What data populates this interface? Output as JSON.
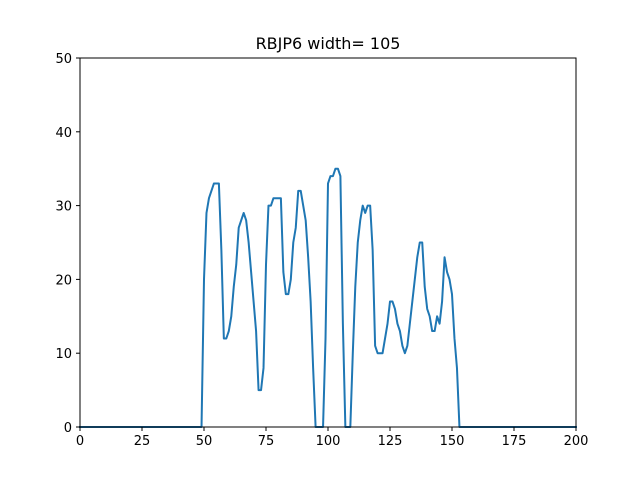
{
  "chart_data": {
    "type": "line",
    "title": "RBJP6 width= 105",
    "xlabel": "",
    "ylabel": "",
    "xlim": [
      0,
      200
    ],
    "ylim": [
      0,
      50
    ],
    "xticks": [
      0,
      25,
      50,
      75,
      100,
      125,
      150,
      175,
      200
    ],
    "yticks": [
      0,
      10,
      20,
      30,
      40,
      50
    ],
    "grid": false,
    "series": [
      {
        "color": "#1f77b4",
        "points": [
          [
            0,
            0
          ],
          [
            49,
            0
          ],
          [
            50,
            20
          ],
          [
            51,
            29
          ],
          [
            52,
            31
          ],
          [
            53,
            32
          ],
          [
            54,
            33
          ],
          [
            55,
            33
          ],
          [
            56,
            33
          ],
          [
            57,
            24
          ],
          [
            58,
            12
          ],
          [
            59,
            12
          ],
          [
            60,
            13
          ],
          [
            61,
            15
          ],
          [
            62,
            19
          ],
          [
            63,
            22
          ],
          [
            64,
            27
          ],
          [
            65,
            28
          ],
          [
            66,
            29
          ],
          [
            67,
            28
          ],
          [
            68,
            25
          ],
          [
            69,
            21
          ],
          [
            70,
            17
          ],
          [
            71,
            13
          ],
          [
            72,
            5
          ],
          [
            73,
            5
          ],
          [
            74,
            8
          ],
          [
            75,
            22
          ],
          [
            76,
            30
          ],
          [
            77,
            30
          ],
          [
            78,
            31
          ],
          [
            79,
            31
          ],
          [
            80,
            31
          ],
          [
            81,
            31
          ],
          [
            82,
            21
          ],
          [
            83,
            18
          ],
          [
            84,
            18
          ],
          [
            85,
            20
          ],
          [
            86,
            25
          ],
          [
            87,
            27
          ],
          [
            88,
            32
          ],
          [
            89,
            32
          ],
          [
            90,
            30
          ],
          [
            91,
            28
          ],
          [
            92,
            23
          ],
          [
            93,
            17
          ],
          [
            94,
            8
          ],
          [
            95,
            0
          ],
          [
            98,
            0
          ],
          [
            99,
            12
          ],
          [
            100,
            33
          ],
          [
            101,
            34
          ],
          [
            102,
            34
          ],
          [
            103,
            35
          ],
          [
            104,
            35
          ],
          [
            105,
            34
          ],
          [
            106,
            14
          ],
          [
            107,
            0
          ],
          [
            109,
            0
          ],
          [
            110,
            10
          ],
          [
            111,
            19
          ],
          [
            112,
            25
          ],
          [
            113,
            28
          ],
          [
            114,
            30
          ],
          [
            115,
            29
          ],
          [
            116,
            30
          ],
          [
            117,
            30
          ],
          [
            118,
            24
          ],
          [
            119,
            11
          ],
          [
            120,
            10
          ],
          [
            121,
            10
          ],
          [
            122,
            10
          ],
          [
            123,
            12
          ],
          [
            124,
            14
          ],
          [
            125,
            17
          ],
          [
            126,
            17
          ],
          [
            127,
            16
          ],
          [
            128,
            14
          ],
          [
            129,
            13
          ],
          [
            130,
            11
          ],
          [
            131,
            10
          ],
          [
            132,
            11
          ],
          [
            133,
            14
          ],
          [
            134,
            17
          ],
          [
            135,
            20
          ],
          [
            136,
            23
          ],
          [
            137,
            25
          ],
          [
            138,
            25
          ],
          [
            139,
            19
          ],
          [
            140,
            16
          ],
          [
            141,
            15
          ],
          [
            142,
            13
          ],
          [
            143,
            13
          ],
          [
            144,
            15
          ],
          [
            145,
            14
          ],
          [
            146,
            17
          ],
          [
            147,
            23
          ],
          [
            148,
            21
          ],
          [
            149,
            20
          ],
          [
            150,
            18
          ],
          [
            151,
            12
          ],
          [
            152,
            8
          ],
          [
            153,
            0
          ],
          [
            200,
            0
          ]
        ]
      }
    ]
  }
}
